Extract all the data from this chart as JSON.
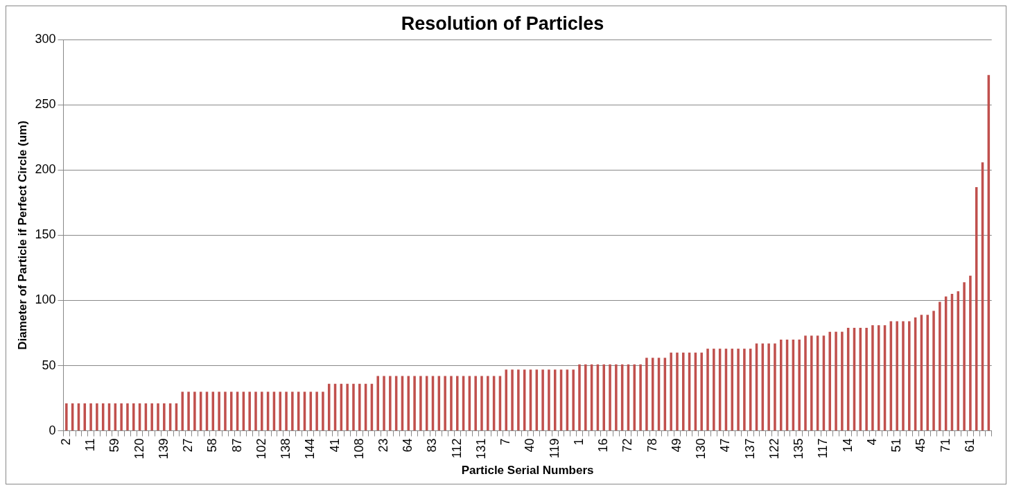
{
  "chart_data": {
    "type": "bar",
    "title": "Resolution of Particles",
    "xlabel": "Particle Serial Numbers",
    "ylabel": "Diameter of Particle if Perfect Circle (um)",
    "categories": [
      "2",
      null,
      null,
      null,
      "11",
      null,
      null,
      null,
      "59",
      null,
      null,
      null,
      "120",
      null,
      null,
      null,
      "139",
      null,
      null,
      null,
      "27",
      null,
      null,
      null,
      "58",
      null,
      null,
      null,
      "87",
      null,
      null,
      null,
      "102",
      null,
      null,
      null,
      "138",
      null,
      null,
      null,
      "144",
      null,
      null,
      null,
      "41",
      null,
      null,
      null,
      "108",
      null,
      null,
      null,
      "23",
      null,
      null,
      null,
      "64",
      null,
      null,
      null,
      "83",
      null,
      null,
      null,
      "112",
      null,
      null,
      null,
      "131",
      null,
      null,
      null,
      "7",
      null,
      null,
      null,
      "40",
      null,
      null,
      null,
      "119",
      null,
      null,
      null,
      "1",
      null,
      null,
      null,
      "16",
      null,
      null,
      null,
      "72",
      null,
      null,
      null,
      "78",
      null,
      null,
      null,
      "49",
      null,
      null,
      null,
      "130",
      null,
      null,
      null,
      "47",
      null,
      null,
      null,
      "137",
      null,
      null,
      null,
      "122",
      null,
      null,
      null,
      "135",
      null,
      null,
      null,
      "117",
      null,
      null,
      null,
      "14",
      null,
      null,
      null,
      "4",
      null,
      null,
      null,
      "51",
      null,
      null,
      null,
      "45",
      null,
      null,
      null,
      "71",
      null,
      null,
      null,
      "61",
      null,
      null,
      null
    ],
    "values": [
      21,
      21,
      21,
      21,
      21,
      21,
      21,
      21,
      21,
      21,
      21,
      21,
      21,
      21,
      21,
      21,
      21,
      21,
      21,
      30,
      30,
      30,
      30,
      30,
      30,
      30,
      30,
      30,
      30,
      30,
      30,
      30,
      30,
      30,
      30,
      30,
      30,
      30,
      30,
      30,
      30,
      30,
      30,
      36,
      36,
      36,
      36,
      36,
      36,
      36,
      36,
      42,
      42,
      42,
      42,
      42,
      42,
      42,
      42,
      42,
      42,
      42,
      42,
      42,
      42,
      42,
      42,
      42,
      42,
      42,
      42,
      42,
      47,
      47,
      47,
      47,
      47,
      47,
      47,
      47,
      47,
      47,
      47,
      47,
      51,
      51,
      51,
      51,
      51,
      51,
      51,
      51,
      51,
      51,
      51,
      56,
      56,
      56,
      56,
      60,
      60,
      60,
      60,
      60,
      60,
      63,
      63,
      63,
      63,
      63,
      63,
      63,
      63,
      67,
      67,
      67,
      67,
      70,
      70,
      70,
      70,
      73,
      73,
      73,
      73,
      76,
      76,
      76,
      79,
      79,
      79,
      79,
      81,
      81,
      81,
      84,
      84,
      84,
      84,
      87,
      89,
      89,
      92,
      99,
      103,
      105,
      107,
      114,
      119,
      187,
      206,
      273
    ],
    "color": "#c0504d",
    "ylim": [
      0,
      300
    ],
    "yticks": [
      0,
      50,
      100,
      150,
      200,
      250,
      300
    ],
    "grid": "y"
  }
}
